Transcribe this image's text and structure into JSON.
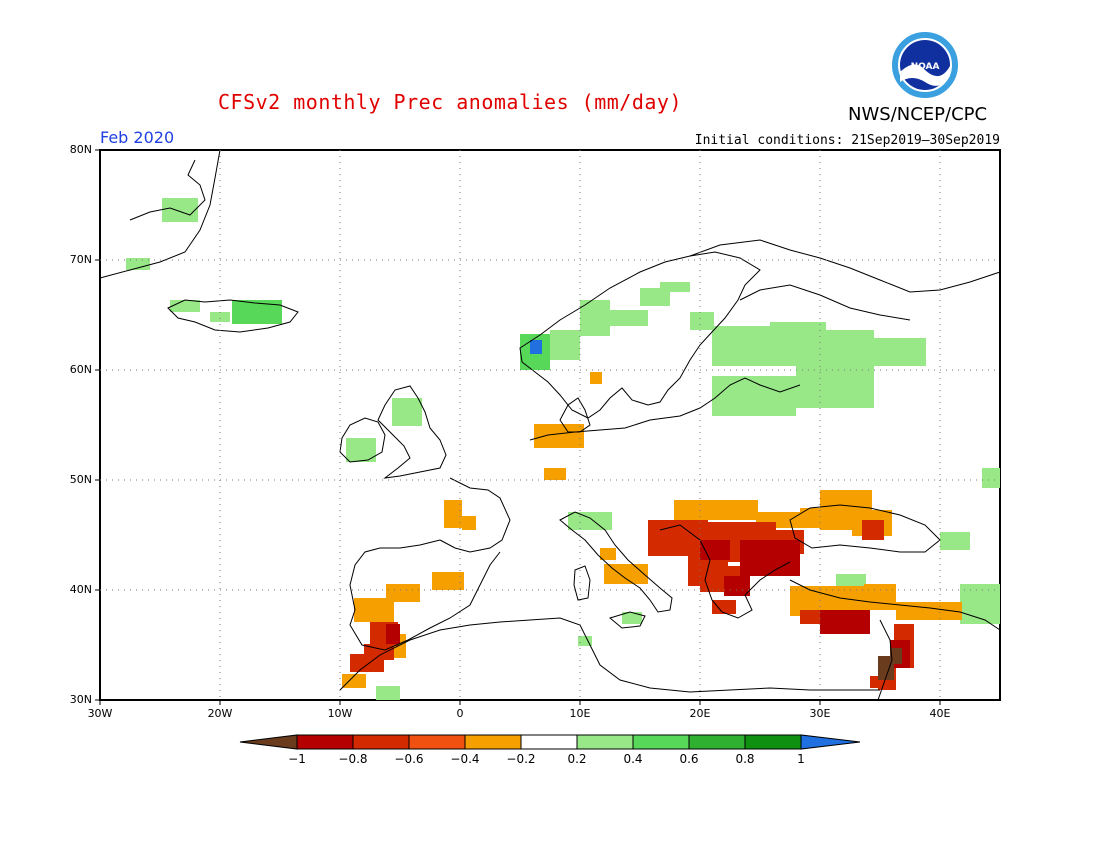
{
  "title": "CFSv2 monthly Prec anomalies (mm/day)",
  "org": "NWS/NCEP/CPC",
  "logo_text": "NOAA",
  "month": "Feb 2020",
  "initial_conditions": "Initial conditions: 21Sep2019–30Sep2019",
  "map": {
    "lon_range": [
      -30,
      45
    ],
    "lat_range": [
      30,
      80
    ],
    "lat_labels": [
      "80N",
      "70N",
      "60N",
      "50N",
      "40N",
      "30N"
    ],
    "lon_labels": [
      "30W",
      "20W",
      "10W",
      "0",
      "10E",
      "20E",
      "30E",
      "40E"
    ],
    "grid": "dotted"
  },
  "colorbar": {
    "labels": [
      "−1",
      "−0.8",
      "−0.6",
      "−0.4",
      "−0.2",
      "0.2",
      "0.4",
      "0.6",
      "0.8",
      "1"
    ],
    "colors": [
      "#6b3b1e",
      "#b40000",
      "#d42a00",
      "#f05010",
      "#f5a000",
      "#ffffff",
      "#98e888",
      "#58d858",
      "#30b030",
      "#109010",
      "#2070e0"
    ]
  },
  "anomaly_regions": [
    {
      "name": "Balkans and Black Sea",
      "class": "-0.4 to -1"
    },
    {
      "name": "Turkey and Levant",
      "class": "-0.4 to -1"
    },
    {
      "name": "Iberia",
      "class": "-0.2 to -0.8"
    },
    {
      "name": "Scandinavia and Baltic",
      "class": "0.2 to 0.8"
    },
    {
      "name": "Iceland and Greenland",
      "class": "0.2 to 0.6"
    }
  ]
}
